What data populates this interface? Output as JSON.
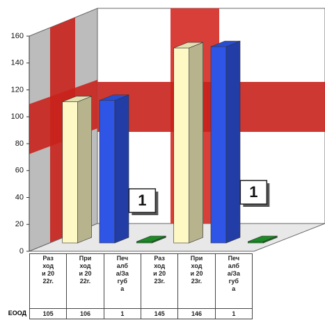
{
  "chart_data": {
    "type": "bar3d",
    "categories": [
      "Разходи 2022г.",
      "Приходи 2022г.",
      "Печалба/Загуба",
      "Разходи 2023г.",
      "Приходи 2023г.",
      "Печалба/Загуба"
    ],
    "series": [
      {
        "name": "ЕООД",
        "values": [
          105,
          106,
          1,
          145,
          146,
          1
        ],
        "colors": [
          "#fdf8c4",
          "#2f55e6",
          "#1f9a2a",
          "#fdf8c4",
          "#2f55e6",
          "#1f9a2a"
        ]
      }
    ],
    "data_labels": [
      {
        "category": 2,
        "label": "1"
      },
      {
        "category": 5,
        "label": "1"
      }
    ],
    "ylim": [
      0,
      160
    ],
    "yticks": [
      0,
      20,
      40,
      60,
      80,
      100,
      120,
      140,
      160
    ]
  }
}
